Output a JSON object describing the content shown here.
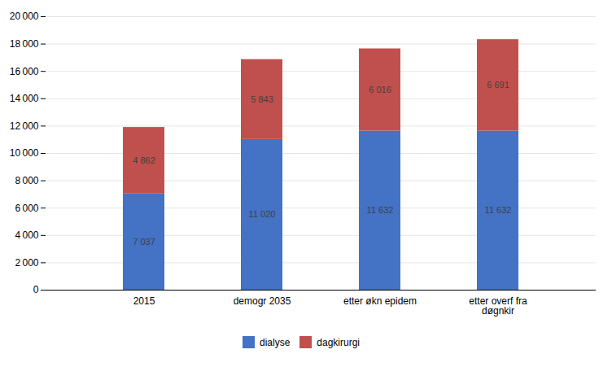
{
  "chart_data": {
    "type": "bar",
    "stacked": true,
    "categories": [
      "2015",
      "demogr 2035",
      "etter økn epidem",
      "etter overf fra\ndøgnkir"
    ],
    "series": [
      {
        "name": "dialyse",
        "color": "#4472C4",
        "values": [
          7037,
          11020,
          11632,
          11632
        ],
        "value_labels": [
          "7 037",
          "11 020",
          "11 632",
          "11 632"
        ]
      },
      {
        "name": "dagkirurgi",
        "color": "#C0504D",
        "values": [
          4862,
          5843,
          6016,
          6691
        ],
        "value_labels": [
          "4 862",
          "5 843",
          "6 016",
          "6 691"
        ]
      }
    ],
    "ylim": [
      0,
      20000
    ],
    "yticks": [
      0,
      {
        "value": 2000,
        "label": "2 000"
      },
      {
        "value": 4000,
        "label": "4 000"
      },
      {
        "value": 6000,
        "label": "6 000"
      },
      {
        "value": 8000,
        "label": "8 000"
      },
      {
        "value": 10000,
        "label": "10 000"
      },
      {
        "value": 12000,
        "label": "12 000"
      },
      {
        "value": 14000,
        "label": "14 000"
      },
      {
        "value": 16000,
        "label": "16 000"
      },
      {
        "value": 18000,
        "label": "18 000"
      },
      {
        "value": 20000,
        "label": "20 000"
      }
    ],
    "grid": true,
    "data_labels": true,
    "legend": "bottom"
  }
}
